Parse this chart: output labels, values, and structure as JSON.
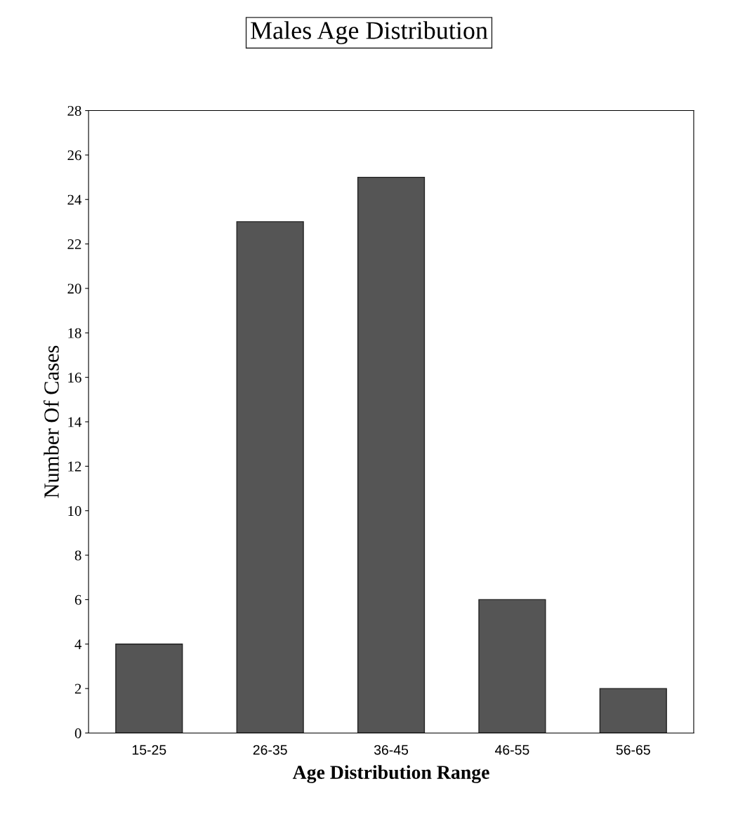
{
  "chart_data": {
    "type": "bar",
    "title": "Males Age Distribution",
    "xlabel": "Age Distribution Range",
    "ylabel": "Number Of Cases",
    "categories": [
      "15-25",
      "26-35",
      "36-45",
      "46-55",
      "56-65"
    ],
    "values": [
      4,
      23,
      25,
      6,
      2
    ],
    "color": "#555555",
    "ylim": [
      0,
      28
    ],
    "yticks": [
      0,
      2,
      4,
      6,
      8,
      10,
      12,
      14,
      16,
      18,
      20,
      22,
      24,
      26,
      28
    ],
    "grid": false
  }
}
